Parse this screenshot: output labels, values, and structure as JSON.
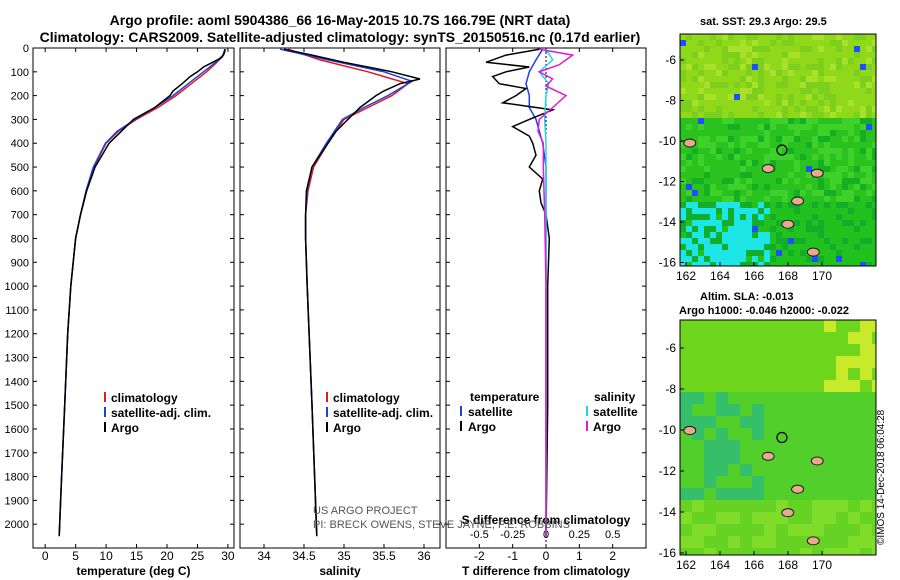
{
  "header": {
    "title_line1": "Argo profile: aoml 5904386_66 16-May-2015 10.7S 166.79E (NRT data)",
    "title_line2": "Climatology: CARS2009. Satellite-adjusted climatology: synTS_20150516.nc (0.17d earlier)"
  },
  "colors": {
    "climatology": "#e41a1c",
    "satellite": "#1f3fe0",
    "argo": "#000000",
    "satellite_sal": "#21d4e6",
    "argo_sal": "#e01ad6"
  },
  "chart_data": [
    {
      "type": "line",
      "name": "temperature-profile",
      "xlabel": "temperature (deg C)",
      "ylabel": "",
      "xlim": [
        -2,
        31
      ],
      "ylim": [
        0,
        2100
      ],
      "y_inverted": true,
      "xticks": [
        0,
        5,
        10,
        15,
        20,
        25,
        30
      ],
      "yticks": [
        0,
        100,
        200,
        300,
        400,
        500,
        600,
        700,
        800,
        900,
        1000,
        1100,
        1200,
        1300,
        1400,
        1500,
        1600,
        1700,
        1800,
        1900,
        2000
      ],
      "legend": [
        "climatology",
        "satellite-adj. clim.",
        "Argo"
      ],
      "series": [
        {
          "name": "climatology",
          "depth": [
            5,
            30,
            60,
            100,
            150,
            200,
            250,
            300,
            350,
            400,
            500,
            600,
            700,
            800,
            1000,
            1200,
            1500,
            1800,
            2050
          ],
          "values": [
            29.6,
            29.3,
            28.2,
            26.5,
            24.0,
            21.5,
            18.5,
            15.0,
            12.0,
            10.0,
            8.0,
            6.8,
            5.8,
            5.0,
            4.2,
            3.7,
            3.2,
            2.7,
            2.3
          ]
        },
        {
          "name": "satellite-adj. clim.",
          "depth": [
            5,
            30,
            60,
            100,
            150,
            200,
            250,
            300,
            350,
            400,
            500,
            600,
            700,
            800,
            1000,
            1200,
            1500,
            1800,
            2050
          ],
          "values": [
            29.5,
            29.2,
            28.0,
            26.0,
            23.5,
            21.0,
            18.0,
            14.8,
            11.8,
            9.9,
            7.9,
            6.7,
            5.8,
            5.0,
            4.2,
            3.7,
            3.2,
            2.7,
            2.3
          ]
        },
        {
          "name": "Argo",
          "depth": [
            5,
            20,
            40,
            60,
            80,
            100,
            120,
            150,
            180,
            200,
            250,
            300,
            350,
            400,
            500,
            600,
            700,
            800,
            1000,
            1200,
            1500,
            1800,
            2050
          ],
          "values": [
            29.5,
            29.4,
            29.0,
            27.5,
            26.0,
            25.0,
            23.8,
            22.5,
            21.0,
            20.5,
            18.0,
            14.5,
            12.5,
            10.5,
            8.2,
            6.8,
            5.8,
            5.0,
            4.2,
            3.7,
            3.2,
            2.7,
            2.3
          ]
        }
      ]
    },
    {
      "type": "line",
      "name": "salinity-profile",
      "xlabel": "salinity",
      "xlim": [
        33.7,
        36.2
      ],
      "ylim": [
        0,
        2100
      ],
      "y_inverted": true,
      "xticks": [
        34,
        34.5,
        35,
        35.5,
        36
      ],
      "legend": [
        "climatology",
        "satellite-adj. clim.",
        "Argo"
      ],
      "series": [
        {
          "name": "climatology",
          "depth": [
            5,
            50,
            100,
            150,
            200,
            250,
            300,
            400,
            500,
            600,
            700,
            800,
            1000,
            1500,
            2050
          ],
          "values": [
            34.3,
            34.7,
            35.3,
            35.8,
            35.6,
            35.3,
            35.0,
            34.8,
            34.62,
            34.55,
            34.52,
            34.52,
            34.54,
            34.6,
            34.66
          ]
        },
        {
          "name": "satellite-adj. clim.",
          "depth": [
            5,
            50,
            100,
            140,
            200,
            250,
            300,
            400,
            500,
            600,
            700,
            800,
            1000,
            1500,
            2050
          ],
          "values": [
            34.2,
            34.8,
            35.5,
            35.85,
            35.55,
            35.25,
            34.98,
            34.78,
            34.6,
            34.54,
            34.52,
            34.52,
            34.54,
            34.6,
            34.66
          ]
        },
        {
          "name": "Argo",
          "depth": [
            5,
            30,
            60,
            100,
            130,
            150,
            180,
            200,
            250,
            300,
            350,
            400,
            500,
            600,
            700,
            800,
            1000,
            1500,
            2050
          ],
          "values": [
            34.25,
            34.6,
            35.0,
            35.6,
            35.95,
            35.7,
            35.5,
            35.4,
            35.2,
            35.05,
            34.9,
            34.8,
            34.6,
            34.53,
            34.52,
            34.52,
            34.54,
            34.6,
            34.66
          ]
        }
      ]
    },
    {
      "type": "line",
      "name": "difference-profile",
      "xlabel": "T difference from climatology",
      "xlabel_top": "S difference from climatology",
      "xlim": [
        -3,
        3
      ],
      "ylim": [
        0,
        2100
      ],
      "y_inverted": true,
      "xticks": [
        -2,
        -1,
        0,
        1,
        2
      ],
      "xticks_s_labels": [
        "-0.5",
        "-0.25",
        "0",
        "0.25",
        "0.5"
      ],
      "legend_temperature": [
        "satellite",
        "Argo"
      ],
      "legend_salinity": [
        "satellite",
        "Argo"
      ],
      "series": [
        {
          "name": "temperature satellite",
          "depth": [
            5,
            50,
            100,
            150,
            200,
            250,
            300,
            400,
            500,
            700,
            1000,
            1500,
            2050
          ],
          "values": [
            -0.1,
            -0.3,
            -0.5,
            -0.6,
            -0.5,
            -0.5,
            -0.3,
            -0.1,
            0,
            0,
            0,
            0,
            0
          ]
        },
        {
          "name": "temperature Argo",
          "depth": [
            5,
            30,
            60,
            80,
            100,
            120,
            150,
            170,
            200,
            230,
            260,
            300,
            330,
            370,
            400,
            450,
            500,
            550,
            600,
            650,
            700,
            800,
            1000,
            1500,
            2050
          ],
          "values": [
            -0.2,
            -1.2,
            -1.8,
            -0.5,
            -1.2,
            -1.6,
            -1.4,
            -0.6,
            -0.9,
            -1.3,
            0.2,
            -0.5,
            -1.0,
            -0.5,
            -0.4,
            -0.3,
            -0.5,
            -0.1,
            -0.2,
            -0.15,
            0,
            0.1,
            0.05,
            0.05,
            0
          ]
        },
        {
          "name": "salinity satellite",
          "depth": [
            5,
            50,
            100,
            150,
            200,
            300,
            400,
            500,
            700,
            1000,
            2050
          ],
          "values": [
            0.0,
            0.05,
            -0.05,
            0.02,
            0.0,
            -0.01,
            0.0,
            0.0,
            0.0,
            0.0,
            0.0
          ]
        },
        {
          "name": "salinity Argo",
          "depth": [
            5,
            30,
            50,
            70,
            100,
            130,
            160,
            200,
            250,
            300,
            350,
            400,
            500,
            700,
            1000,
            2050
          ],
          "values": [
            -0.05,
            0.2,
            0.15,
            0.1,
            -0.05,
            0.05,
            0.0,
            0.15,
            0.05,
            -0.05,
            -0.06,
            -0.02,
            -0.02,
            -0.01,
            0.0,
            0.0
          ]
        }
      ]
    }
  ],
  "axis": {
    "depth_ticks": [
      "0",
      "100",
      "200",
      "300",
      "400",
      "500",
      "600",
      "700",
      "800",
      "900",
      "1000",
      "1100",
      "1200",
      "1300",
      "1400",
      "1500",
      "1600",
      "1700",
      "1800",
      "1900",
      "2000"
    ]
  },
  "legends": {
    "profile": [
      "climatology",
      "satellite-adj. clim.",
      "Argo"
    ],
    "diff_temp_title": "temperature",
    "diff_sal_title": "salinity",
    "diff_temp_items": [
      "satellite",
      "Argo"
    ],
    "diff_sal_items": [
      "satellite",
      "Argo"
    ]
  },
  "watermark": {
    "line1": "US ARGO PROJECT",
    "line2": "PI: BRECK OWENS, STEVE JAYNE, P.E. ROBBINS"
  },
  "maps": {
    "sst": {
      "title": "sat. SST: 29.3 Argo: 29.5",
      "lon_ticks": [
        "162",
        "164",
        "166",
        "168",
        "170"
      ],
      "lat_ticks": [
        "-6",
        "-8",
        "-10",
        "-12",
        "-14",
        "-16"
      ]
    },
    "sla": {
      "title1": "Altim. SLA: -0.013",
      "title2": "Argo h1000: -0.046 h2000: -0.022",
      "lon_ticks": [
        "162",
        "164",
        "166",
        "168",
        "170"
      ],
      "lat_ticks": [
        "-6",
        "-8",
        "-10",
        "-12",
        "-14",
        "-16"
      ]
    }
  },
  "footer": {
    "imos": "©IMOS 14-Dec-2018 06:04:28"
  }
}
